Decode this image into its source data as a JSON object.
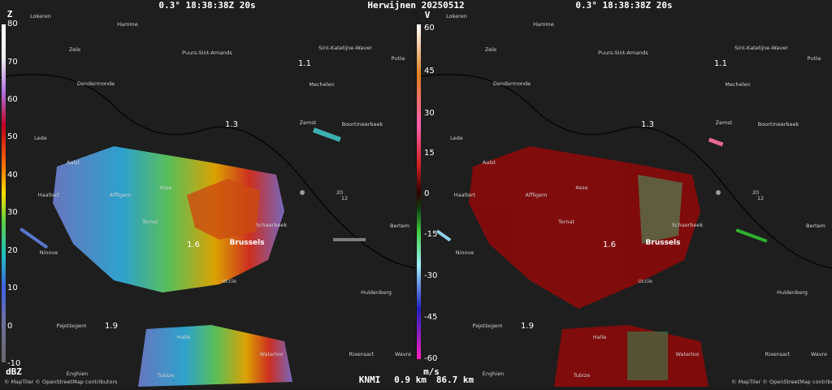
{
  "header": {
    "left": "0.3° 18:38:38Z 20s",
    "center": "Herwijnen 20250512",
    "right": "0.3° 18:38:38Z 20s"
  },
  "colorbars": [
    {
      "label": "Z",
      "unit": "dBZ",
      "ticks": [
        80,
        70,
        60,
        50,
        40,
        30,
        20,
        10,
        0,
        -10
      ]
    },
    {
      "label": "V",
      "unit": "m/s",
      "ticks": [
        60,
        45,
        30,
        15,
        0,
        -15,
        -30,
        -45,
        -60
      ]
    }
  ],
  "places": [
    "Lokeren",
    "Hamme",
    "Zele",
    "Puurs-Sint-Amands",
    "Sint-Katelijne-Waver",
    "Putte",
    "Mechelen",
    "Dendermonde",
    "Zemst",
    "Boortmeerbeek",
    "Lede",
    "Aalst",
    "Haaltert",
    "Affligem",
    "Asse",
    "Ternat",
    "Schaerbeek",
    "Brussels",
    "Bertem",
    "Ninove",
    "Uccle",
    "Huldenberg",
    "Pajottegem",
    "Halle",
    "Waterloo",
    "Rixensart",
    "Wavre",
    "Tubize",
    "Enghien"
  ],
  "contour_labels": [
    "1.1",
    "1.3",
    "1.6",
    "1.9"
  ],
  "wind_barb": [
    "20",
    "12"
  ],
  "footer": {
    "attribution": "© MapTiler © OpenStreetMap contributors",
    "source": "KNMI",
    "height": "0.9 km",
    "range": "86.7 km"
  }
}
